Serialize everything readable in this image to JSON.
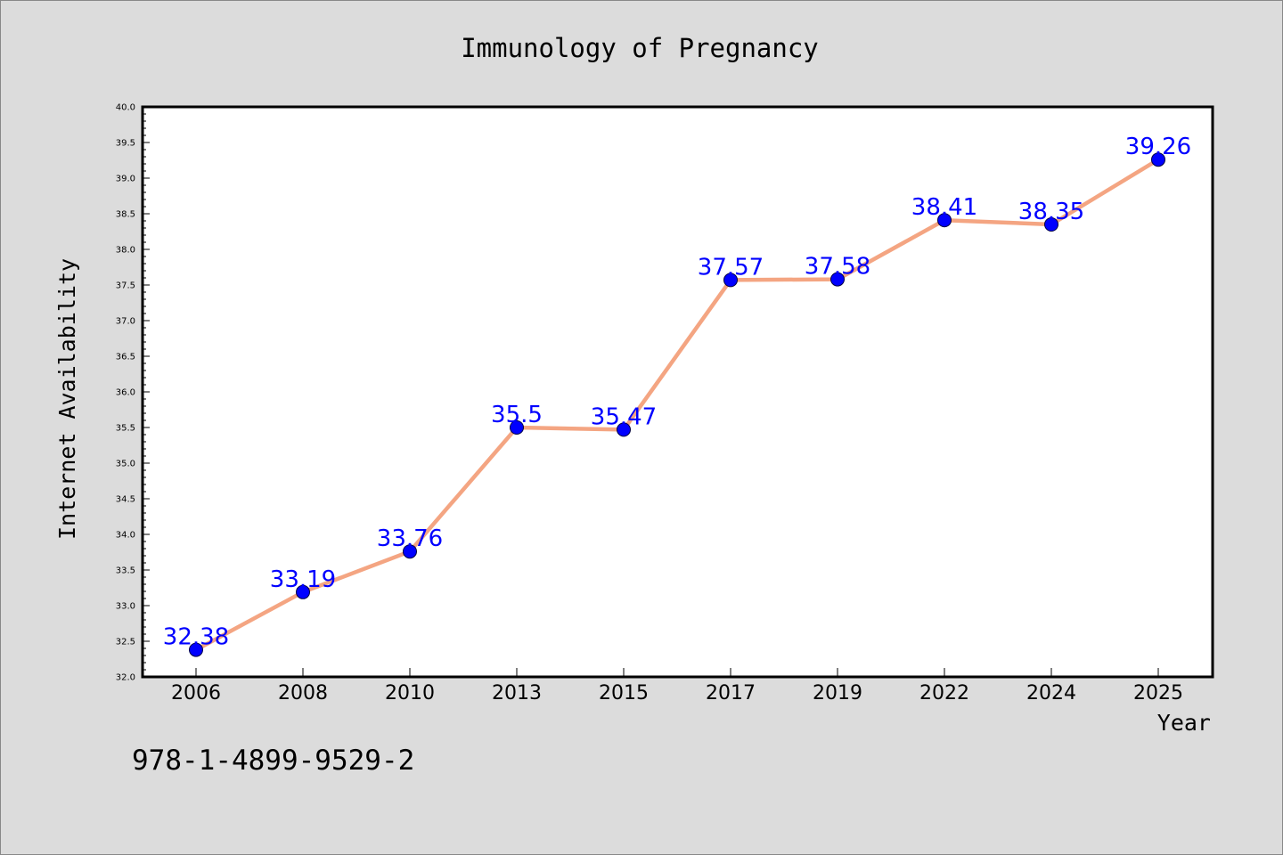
{
  "footer_text": "978-1-4899-9529-2",
  "chart_data": {
    "type": "line",
    "title": "Immunology of Pregnancy",
    "xlabel": "Year",
    "ylabel": "Internet Availability",
    "categories": [
      "2006",
      "2008",
      "2010",
      "2013",
      "2015",
      "2017",
      "2019",
      "2022",
      "2024",
      "2025"
    ],
    "values": [
      32.38,
      33.19,
      33.76,
      35.5,
      35.47,
      37.57,
      37.58,
      38.41,
      38.35,
      39.26
    ],
    "data_labels": [
      "32.38",
      "33.19",
      "33.76",
      "35.5",
      "35.47",
      "37.57",
      "37.58",
      "38.41",
      "38.35",
      "39.26"
    ],
    "y_ticks": [
      "32.0",
      "32.5",
      "33.0",
      "33.5",
      "34.0",
      "34.5",
      "35.0",
      "35.5",
      "36.0",
      "36.5",
      "37.0",
      "37.5",
      "38.0",
      "38.5",
      "39.0",
      "39.5",
      "40.0"
    ],
    "ylim": [
      32.0,
      40.0
    ],
    "grid": false,
    "legend": "none",
    "colors": {
      "line": "#f4a582",
      "marker": "#0000ff",
      "data_label": "#0000ff",
      "plot_background": "#ffffff",
      "figure_background": "#dcdcdc"
    }
  }
}
